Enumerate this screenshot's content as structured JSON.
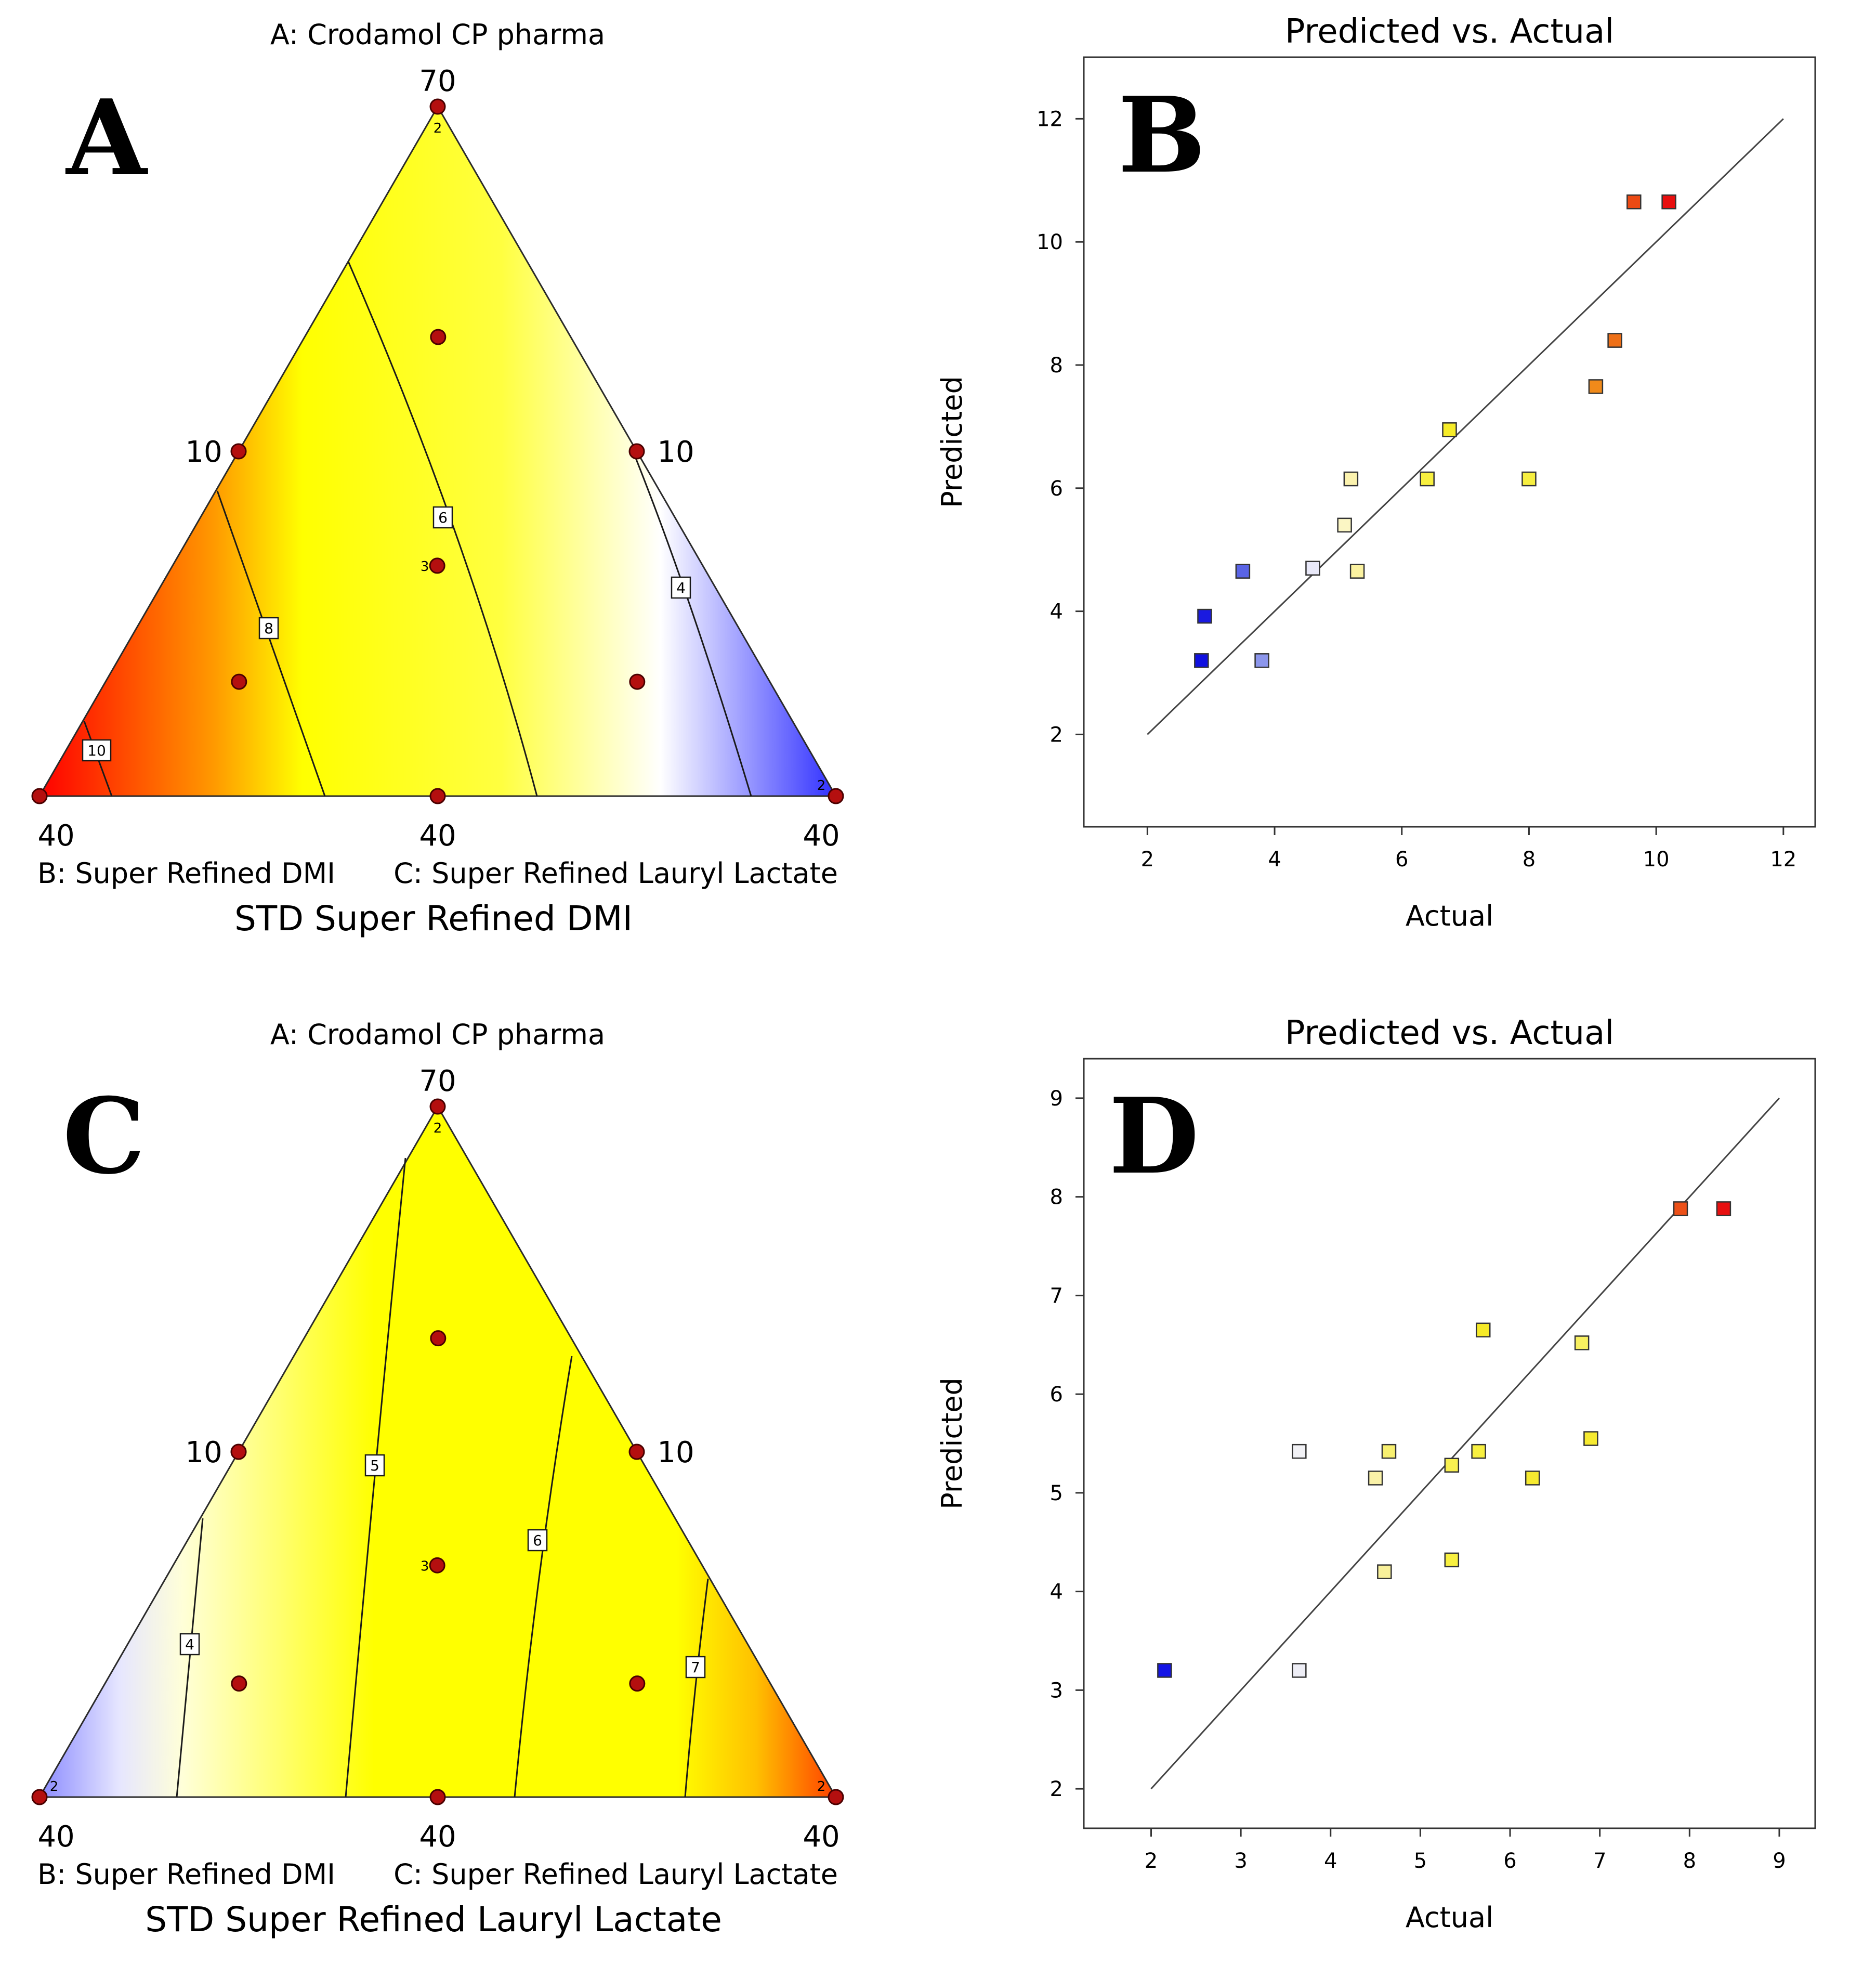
{
  "chart_data": [
    {
      "panel": "A",
      "type": "ternary-contour",
      "title": "STD Super Refined DMI",
      "components": {
        "A": {
          "label": "A: Crodamol CP pharma",
          "max_label": "70"
        },
        "B": {
          "label": "B: Super Refined DMI",
          "max_label": "40"
        },
        "C": {
          "label": "C: Super Refined Lauryl Lactate",
          "max_label": "40"
        }
      },
      "edge_labels": {
        "left": "10",
        "right": "10",
        "bottom": "40"
      },
      "gradient": "red at B vertex to yellow, white and blue at C vertex",
      "gradient_stops": [
        {
          "t": 0.0,
          "color": "#ff0000"
        },
        {
          "t": 0.22,
          "color": "#ff9a00"
        },
        {
          "t": 0.33,
          "color": "#ffff00"
        },
        {
          "t": 0.58,
          "color": "#ffff40"
        },
        {
          "t": 0.78,
          "color": "#ffffff"
        },
        {
          "t": 1.0,
          "color": "#3030ff"
        }
      ],
      "contours": [
        {
          "label": "10"
        },
        {
          "label": "8"
        },
        {
          "label": "6"
        },
        {
          "label": "4"
        }
      ],
      "design_points": [
        {
          "A": 1.0,
          "B": 0.0,
          "C": 0.0,
          "count": "2"
        },
        {
          "A": 0.0,
          "B": 1.0,
          "C": 0.0
        },
        {
          "A": 0.0,
          "B": 0.0,
          "C": 1.0,
          "count": "2"
        },
        {
          "A": 0.5,
          "B": 0.5,
          "C": 0.0
        },
        {
          "A": 0.5,
          "B": 0.0,
          "C": 0.5
        },
        {
          "A": 0.0,
          "B": 0.5,
          "C": 0.5
        },
        {
          "A": 0.333,
          "B": 0.333,
          "C": 0.333,
          "count": "3"
        },
        {
          "A": 0.667,
          "B": 0.167,
          "C": 0.167
        },
        {
          "A": 0.167,
          "B": 0.667,
          "C": 0.167
        },
        {
          "A": 0.167,
          "B": 0.167,
          "C": 0.667
        }
      ]
    },
    {
      "panel": "B",
      "type": "scatter",
      "title": "Predicted vs. Actual",
      "xlabel": "Actual",
      "ylabel": "Predicted",
      "xlim": [
        1.0,
        12.5
      ],
      "ylim": [
        0.5,
        13.0
      ],
      "xticks": [
        2,
        4,
        6,
        8,
        10,
        12
      ],
      "yticks": [
        2,
        4,
        6,
        8,
        10,
        12
      ],
      "diagonal": [
        [
          2,
          2
        ],
        [
          12,
          12
        ]
      ],
      "points": [
        {
          "x": 2.85,
          "y": 3.2,
          "color": "#1010e0"
        },
        {
          "x": 2.9,
          "y": 3.92,
          "color": "#1a1ae0"
        },
        {
          "x": 3.5,
          "y": 4.65,
          "color": "#5a64e6"
        },
        {
          "x": 3.8,
          "y": 3.2,
          "color": "#8c96ec"
        },
        {
          "x": 4.6,
          "y": 4.7,
          "color": "#e8e8f8"
        },
        {
          "x": 5.1,
          "y": 5.4,
          "color": "#fbf6c4"
        },
        {
          "x": 5.2,
          "y": 6.15,
          "color": "#fbf2ae"
        },
        {
          "x": 5.3,
          "y": 4.65,
          "color": "#fbf2a0"
        },
        {
          "x": 6.4,
          "y": 6.15,
          "color": "#f8f040"
        },
        {
          "x": 6.75,
          "y": 6.95,
          "color": "#f6ec28"
        },
        {
          "x": 8.0,
          "y": 6.15,
          "color": "#f6ee40"
        },
        {
          "x": 9.05,
          "y": 7.65,
          "color": "#f08a1a"
        },
        {
          "x": 9.35,
          "y": 8.4,
          "color": "#ee7018"
        },
        {
          "x": 9.65,
          "y": 10.65,
          "color": "#ec4a14"
        },
        {
          "x": 10.2,
          "y": 10.65,
          "color": "#e80e0e"
        }
      ]
    },
    {
      "panel": "C",
      "type": "ternary-contour",
      "title": "STD Super Refined Lauryl Lactate",
      "components": {
        "A": {
          "label": "A: Crodamol CP pharma",
          "max_label": "70"
        },
        "B": {
          "label": "B: Super Refined DMI",
          "max_label": "40"
        },
        "C": {
          "label": "C: Super Refined Lauryl Lactate",
          "max_label": "40"
        }
      },
      "edge_labels": {
        "left": "10",
        "right": "10",
        "bottom": "40"
      },
      "gradient": "blue at B vertex through white and yellow to orange/red at C vertex",
      "gradient_stops": [
        {
          "t": 0.0,
          "color": "#8a8aff"
        },
        {
          "t": 0.1,
          "color": "#e6e6ff"
        },
        {
          "t": 0.18,
          "color": "#ffffd8"
        },
        {
          "t": 0.3,
          "color": "#ffff70"
        },
        {
          "t": 0.42,
          "color": "#ffff00"
        },
        {
          "t": 0.8,
          "color": "#ffff00"
        },
        {
          "t": 0.9,
          "color": "#ffc000"
        },
        {
          "t": 1.0,
          "color": "#ff4000"
        }
      ],
      "contours": [
        {
          "label": "4"
        },
        {
          "label": "5"
        },
        {
          "label": "6"
        },
        {
          "label": "7"
        }
      ],
      "design_points": [
        {
          "A": 1.0,
          "B": 0.0,
          "C": 0.0,
          "count": "2"
        },
        {
          "A": 0.0,
          "B": 1.0,
          "C": 0.0,
          "count": "2"
        },
        {
          "A": 0.0,
          "B": 0.0,
          "C": 1.0,
          "count": "2"
        },
        {
          "A": 0.5,
          "B": 0.5,
          "C": 0.0
        },
        {
          "A": 0.5,
          "B": 0.0,
          "C": 0.5
        },
        {
          "A": 0.0,
          "B": 0.5,
          "C": 0.5
        },
        {
          "A": 0.333,
          "B": 0.333,
          "C": 0.333,
          "count": "3"
        },
        {
          "A": 0.667,
          "B": 0.167,
          "C": 0.167
        },
        {
          "A": 0.167,
          "B": 0.667,
          "C": 0.167
        },
        {
          "A": 0.167,
          "B": 0.167,
          "C": 0.667
        }
      ]
    },
    {
      "panel": "D",
      "type": "scatter",
      "title": "Predicted vs. Actual",
      "xlabel": "Actual",
      "ylabel": "Predicted",
      "xlim": [
        1.25,
        9.4
      ],
      "ylim": [
        1.6,
        9.4
      ],
      "xticks": [
        2,
        3,
        4,
        5,
        6,
        7,
        8,
        9
      ],
      "yticks": [
        2,
        3,
        4,
        5,
        6,
        7,
        8,
        9
      ],
      "diagonal": [
        [
          2,
          2
        ],
        [
          9,
          9
        ]
      ],
      "points": [
        {
          "x": 2.15,
          "y": 3.2,
          "color": "#1414e6"
        },
        {
          "x": 3.65,
          "y": 3.2,
          "color": "#eeeef6"
        },
        {
          "x": 3.65,
          "y": 5.42,
          "color": "#f2f2f6"
        },
        {
          "x": 4.5,
          "y": 5.15,
          "color": "#faf2a8"
        },
        {
          "x": 4.6,
          "y": 4.2,
          "color": "#f8f09a"
        },
        {
          "x": 4.65,
          "y": 5.42,
          "color": "#f8f070"
        },
        {
          "x": 5.35,
          "y": 4.32,
          "color": "#f8f040"
        },
        {
          "x": 5.35,
          "y": 5.28,
          "color": "#f8f050"
        },
        {
          "x": 5.65,
          "y": 5.42,
          "color": "#f8f040"
        },
        {
          "x": 5.7,
          "y": 6.65,
          "color": "#f6ea28"
        },
        {
          "x": 6.25,
          "y": 5.15,
          "color": "#f6ea30"
        },
        {
          "x": 6.8,
          "y": 6.52,
          "color": "#f8f060"
        },
        {
          "x": 6.9,
          "y": 5.55,
          "color": "#f6ea30"
        },
        {
          "x": 7.9,
          "y": 7.88,
          "color": "#ec5018"
        },
        {
          "x": 8.38,
          "y": 7.88,
          "color": "#e81010"
        }
      ]
    }
  ]
}
